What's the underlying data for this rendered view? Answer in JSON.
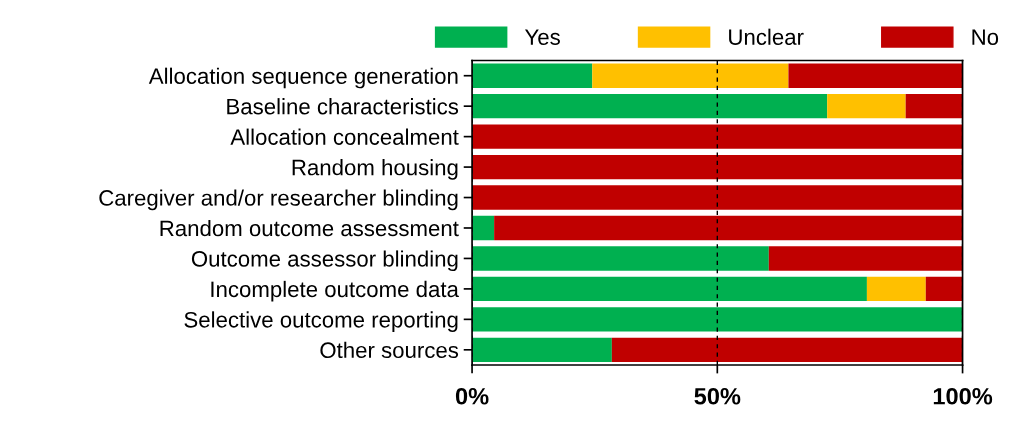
{
  "chart_data": {
    "type": "bar",
    "orientation": "horizontal",
    "stacked": true,
    "categories": [
      "Allocation sequence generation",
      "Baseline characteristics",
      "Allocation concealment",
      "Random housing",
      "Caregiver and/or researcher blinding",
      "Random outcome assessment",
      "Outcome assessor blinding",
      "Incomplete outcome data",
      "Selective outcome reporting",
      "Other sources"
    ],
    "series": [
      {
        "name": "Yes",
        "color": "#00b050",
        "values": [
          24.5,
          72.4,
          0,
          0,
          0,
          4.5,
          60.5,
          80.5,
          100,
          28.5
        ]
      },
      {
        "name": "Unclear",
        "color": "#ffc000",
        "values": [
          40,
          16,
          0,
          0,
          0,
          0,
          0,
          12,
          0,
          0
        ]
      },
      {
        "name": "No",
        "color": "#c00000",
        "values": [
          35.5,
          11.6,
          100,
          100,
          100,
          95.5,
          39.5,
          7.5,
          0,
          71.5
        ]
      }
    ],
    "xlim": [
      0,
      100
    ],
    "xticks": [
      {
        "value": 0,
        "label": "0%"
      },
      {
        "value": 50,
        "label": "50%"
      },
      {
        "value": 100,
        "label": "100%"
      }
    ],
    "grid": "x",
    "legend": "top"
  }
}
